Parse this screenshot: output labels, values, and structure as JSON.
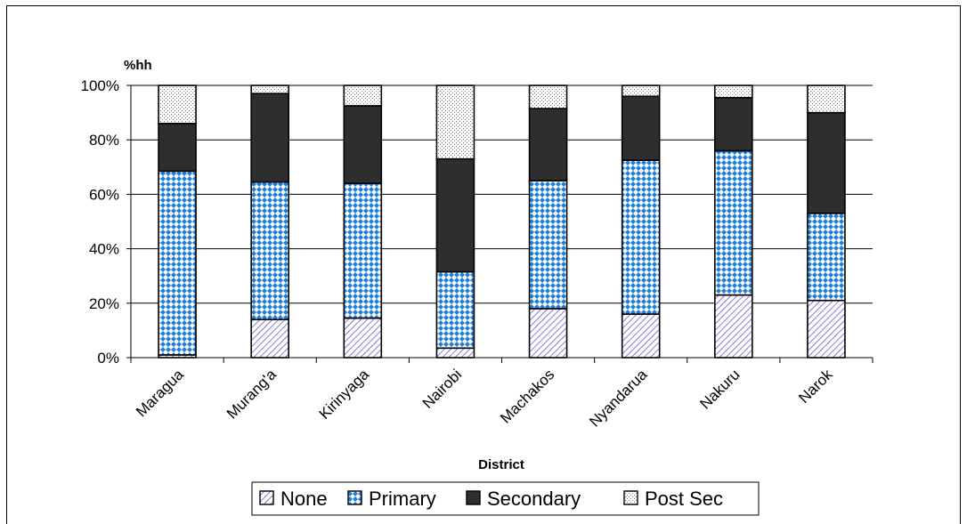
{
  "chart_data": {
    "type": "bar",
    "stacked": true,
    "percent": true,
    "ylabel": "%hh",
    "xlabel": "District",
    "ylim": [
      0,
      100
    ],
    "yticks": [
      "0%",
      "20%",
      "40%",
      "60%",
      "80%",
      "100%"
    ],
    "ytick_values": [
      0,
      20,
      40,
      60,
      80,
      100
    ],
    "grid": true,
    "legend_position": "bottom",
    "categories": [
      "Maragua",
      "Murang'a",
      "Kirinyaga",
      "Nairobi",
      "Machakos",
      "Nyandarua",
      "Nakuru",
      "Narok"
    ],
    "series": [
      {
        "name": "None",
        "values": [
          1,
          14,
          14.5,
          3.5,
          18,
          16,
          23,
          21
        ],
        "pattern": "diagonal-lines",
        "color": "#6a5acd"
      },
      {
        "name": "Primary",
        "values": [
          67.5,
          50.5,
          49.5,
          28,
          47,
          56.5,
          53,
          32
        ],
        "pattern": "diamond-check",
        "color": "#1f7fd6"
      },
      {
        "name": "Secondary",
        "values": [
          17.5,
          32.5,
          28.5,
          41.5,
          26.5,
          23.5,
          19.5,
          37
        ],
        "pattern": "solid",
        "color": "#303030"
      },
      {
        "name": "Post Sec",
        "values": [
          14,
          3,
          7.5,
          27,
          8.5,
          4,
          4.5,
          10
        ],
        "pattern": "dots",
        "color": "#9a9a9a"
      }
    ]
  }
}
